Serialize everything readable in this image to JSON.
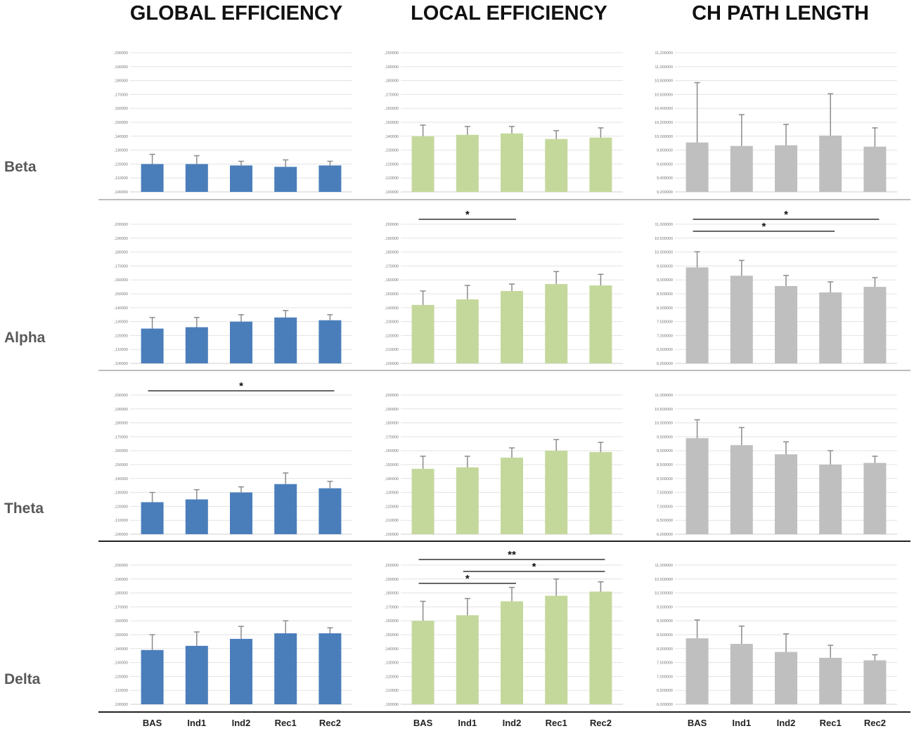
{
  "chart_data": {
    "type": "bar",
    "layout": "grid 4 rows x 3 columns",
    "column_titles": [
      "GLOBAL EFFICIENCY",
      "LOCAL EFFICIENCY",
      "CH PATH LENGTH"
    ],
    "row_labels": [
      "Beta",
      "Alpha",
      "Theta",
      "Delta"
    ],
    "categories": [
      "BAS",
      "Ind1",
      "Ind2",
      "Rec1",
      "Rec2"
    ],
    "colors": {
      "global": "#4a7ebb",
      "local": "#c5d89c",
      "path": "#bfbfbf",
      "error": "#8c8c8c",
      "significance": "#666666"
    },
    "axes": {
      "efficiency": {
        "ylim": [
          0.1,
          0.2
        ],
        "ticks": [
          ",100000",
          ",110000",
          ",120000",
          ",130000",
          ",140000",
          ",150000",
          ",160000",
          ",170000",
          ",180000",
          ",190000",
          ",200000"
        ]
      },
      "path_beta": {
        "ylim": [
          9.2,
          11.2
        ],
        "ticks": [
          "9,200000",
          "9,400000",
          "9,600000",
          "9,800000",
          "10,000000",
          "10,200000",
          "10,400000",
          "10,600000",
          "10,800000",
          "11,000000",
          "11,200000"
        ]
      },
      "path_other": {
        "ylim": [
          6.0,
          11.0
        ],
        "ticks": [
          "6,000000",
          "6,500000",
          "7,000000",
          "7,500000",
          "8,000000",
          "8,500000",
          "9,000000",
          "9,500000",
          "10,000000",
          "10,500000",
          "11,000000"
        ]
      }
    },
    "panels": [
      {
        "row": "Beta",
        "metric": "GLOBAL EFFICIENCY",
        "axis": "efficiency",
        "color": "global",
        "values": [
          0.12,
          0.12,
          0.119,
          0.118,
          0.119
        ],
        "errors": [
          0.007,
          0.006,
          0.003,
          0.005,
          0.003
        ],
        "significance": []
      },
      {
        "row": "Beta",
        "metric": "LOCAL EFFICIENCY",
        "axis": "efficiency",
        "color": "local",
        "values": [
          0.14,
          0.141,
          0.142,
          0.138,
          0.139
        ],
        "errors": [
          0.008,
          0.006,
          0.005,
          0.006,
          0.007
        ],
        "significance": []
      },
      {
        "row": "Beta",
        "metric": "CH PATH LENGTH",
        "axis": "path_beta",
        "color": "path",
        "values": [
          9.91,
          9.86,
          9.87,
          10.01,
          9.85
        ],
        "errors": [
          0.86,
          0.45,
          0.3,
          0.6,
          0.27
        ],
        "significance": []
      },
      {
        "row": "Alpha",
        "metric": "GLOBAL EFFICIENCY",
        "axis": "efficiency",
        "color": "global",
        "values": [
          0.125,
          0.126,
          0.13,
          0.133,
          0.131
        ],
        "errors": [
          0.008,
          0.007,
          0.005,
          0.005,
          0.004
        ],
        "significance": []
      },
      {
        "row": "Alpha",
        "metric": "LOCAL EFFICIENCY",
        "axis": "efficiency",
        "color": "local",
        "values": [
          0.142,
          0.146,
          0.152,
          0.157,
          0.156
        ],
        "errors": [
          0.01,
          0.01,
          0.005,
          0.009,
          0.008
        ],
        "significance": [
          {
            "from": 0,
            "to": 2,
            "label": "*",
            "level": 1
          }
        ]
      },
      {
        "row": "Alpha",
        "metric": "CH PATH LENGTH",
        "axis": "path_other",
        "color": "path",
        "values": [
          9.45,
          9.15,
          8.78,
          8.55,
          8.75
        ],
        "errors": [
          0.56,
          0.55,
          0.38,
          0.38,
          0.33
        ],
        "significance": [
          {
            "from": 0,
            "to": 4,
            "label": "*",
            "level": 1
          },
          {
            "from": 0,
            "to": 3,
            "label": "*",
            "level": 2
          }
        ]
      },
      {
        "row": "Theta",
        "metric": "GLOBAL EFFICIENCY",
        "axis": "efficiency",
        "color": "global",
        "values": [
          0.123,
          0.125,
          0.13,
          0.136,
          0.133
        ],
        "errors": [
          0.007,
          0.007,
          0.004,
          0.008,
          0.005
        ],
        "significance": [
          {
            "from": 0,
            "to": 4,
            "label": "*",
            "level": 1
          }
        ]
      },
      {
        "row": "Theta",
        "metric": "LOCAL EFFICIENCY",
        "axis": "efficiency",
        "color": "local",
        "values": [
          0.147,
          0.148,
          0.155,
          0.16,
          0.159
        ],
        "errors": [
          0.009,
          0.008,
          0.007,
          0.008,
          0.007
        ],
        "significance": []
      },
      {
        "row": "Theta",
        "metric": "CH PATH LENGTH",
        "axis": "path_other",
        "color": "path",
        "values": [
          9.45,
          9.2,
          8.87,
          8.5,
          8.56
        ],
        "errors": [
          0.66,
          0.63,
          0.45,
          0.5,
          0.24
        ],
        "significance": []
      },
      {
        "row": "Delta",
        "metric": "GLOBAL EFFICIENCY",
        "axis": "efficiency",
        "color": "global",
        "values": [
          0.139,
          0.142,
          0.147,
          0.151,
          0.151
        ],
        "errors": [
          0.011,
          0.01,
          0.009,
          0.009,
          0.004
        ],
        "significance": []
      },
      {
        "row": "Delta",
        "metric": "LOCAL EFFICIENCY",
        "axis": "efficiency",
        "color": "local",
        "values": [
          0.16,
          0.164,
          0.174,
          0.178,
          0.181
        ],
        "errors": [
          0.014,
          0.012,
          0.01,
          0.012,
          0.007
        ],
        "significance": [
          {
            "from": 0,
            "to": 4,
            "label": "**",
            "level": 1
          },
          {
            "from": 1,
            "to": 4,
            "label": "*",
            "level": 2
          },
          {
            "from": 0,
            "to": 2,
            "label": "*",
            "level": 3
          }
        ]
      },
      {
        "row": "Delta",
        "metric": "CH PATH LENGTH",
        "axis": "path_other",
        "color": "path",
        "values": [
          8.37,
          8.17,
          7.88,
          7.67,
          7.58
        ],
        "errors": [
          0.66,
          0.64,
          0.65,
          0.45,
          0.2
        ],
        "significance": []
      }
    ]
  }
}
